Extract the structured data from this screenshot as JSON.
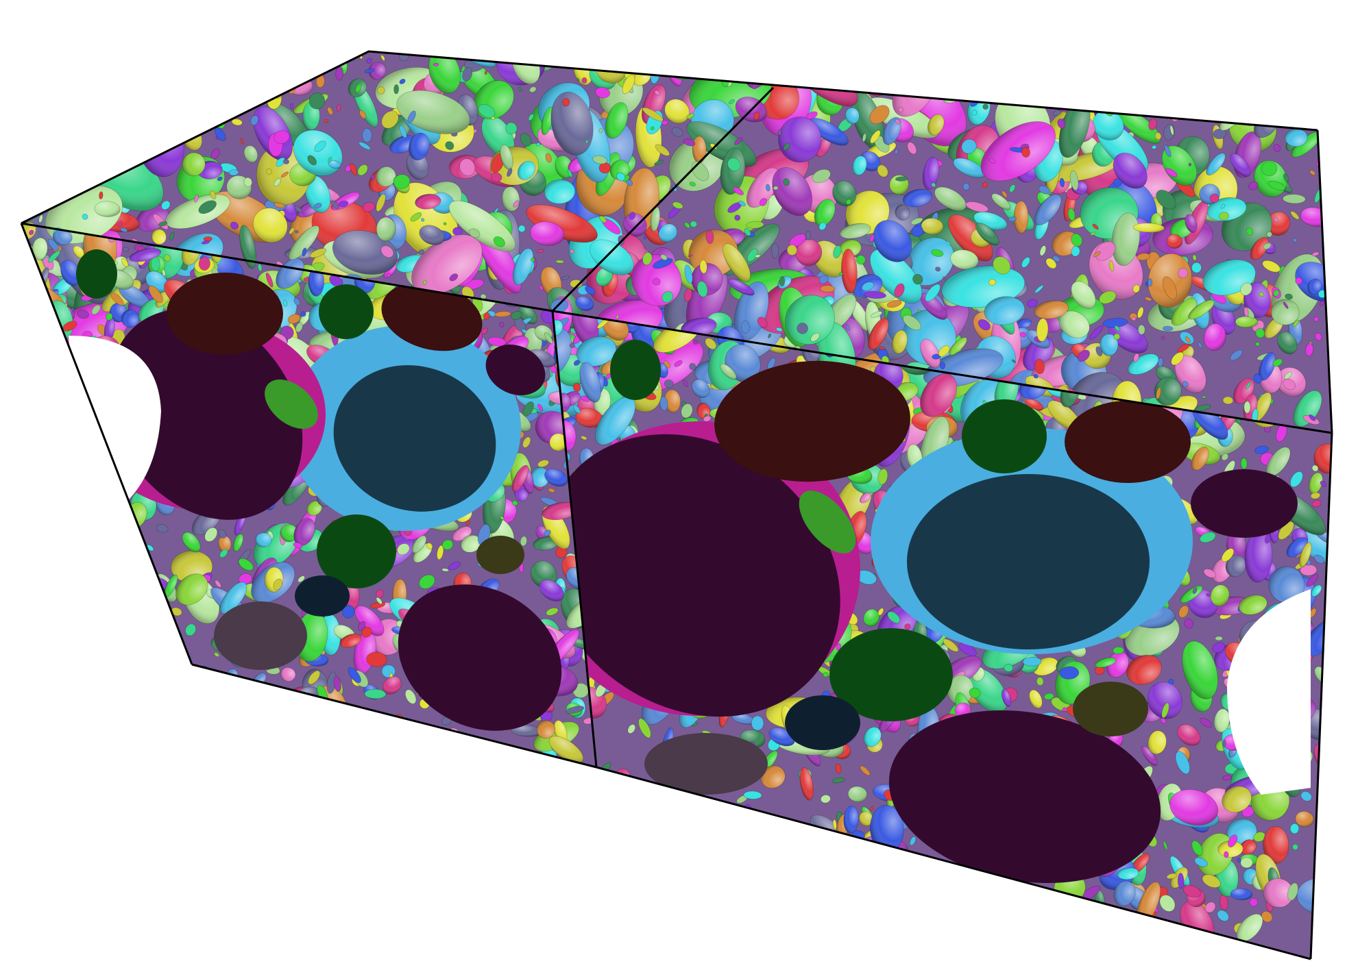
{
  "scene": {
    "subject": "ellipsoid-packing-render",
    "background_color": "#ffffff",
    "edge_color": "#000000",
    "palette": [
      "#e23a3a",
      "#3ad63a",
      "#3a5ae2",
      "#e2e23a",
      "#e23ae2",
      "#3ae2e2",
      "#8a3ad6",
      "#d68a3a",
      "#3ad68a",
      "#8ad63a",
      "#d63a8a",
      "#5a8ad6",
      "#c8c83a",
      "#3a8a5a",
      "#a03ab8",
      "#48c0e8",
      "#9ad08a",
      "#e87ac8",
      "#6a6a9a",
      "#b8e8a0"
    ],
    "large_cut_faces": [
      {
        "name": "purple-cut-ellipse",
        "color": "#330a2e"
      },
      {
        "name": "maroon-cut-ellipse",
        "color": "#3a1010"
      },
      {
        "name": "navy-cut-ellipse",
        "color": "#18384a"
      },
      {
        "name": "green-cut-ellipse",
        "color": "#0a4a12"
      },
      {
        "name": "mauve-cut-ellipse",
        "color": "#4a3a4a"
      },
      {
        "name": "sky-blue-cavity",
        "color": "#4aaee0"
      },
      {
        "name": "magenta-rim",
        "color": "#b81e90"
      }
    ]
  }
}
